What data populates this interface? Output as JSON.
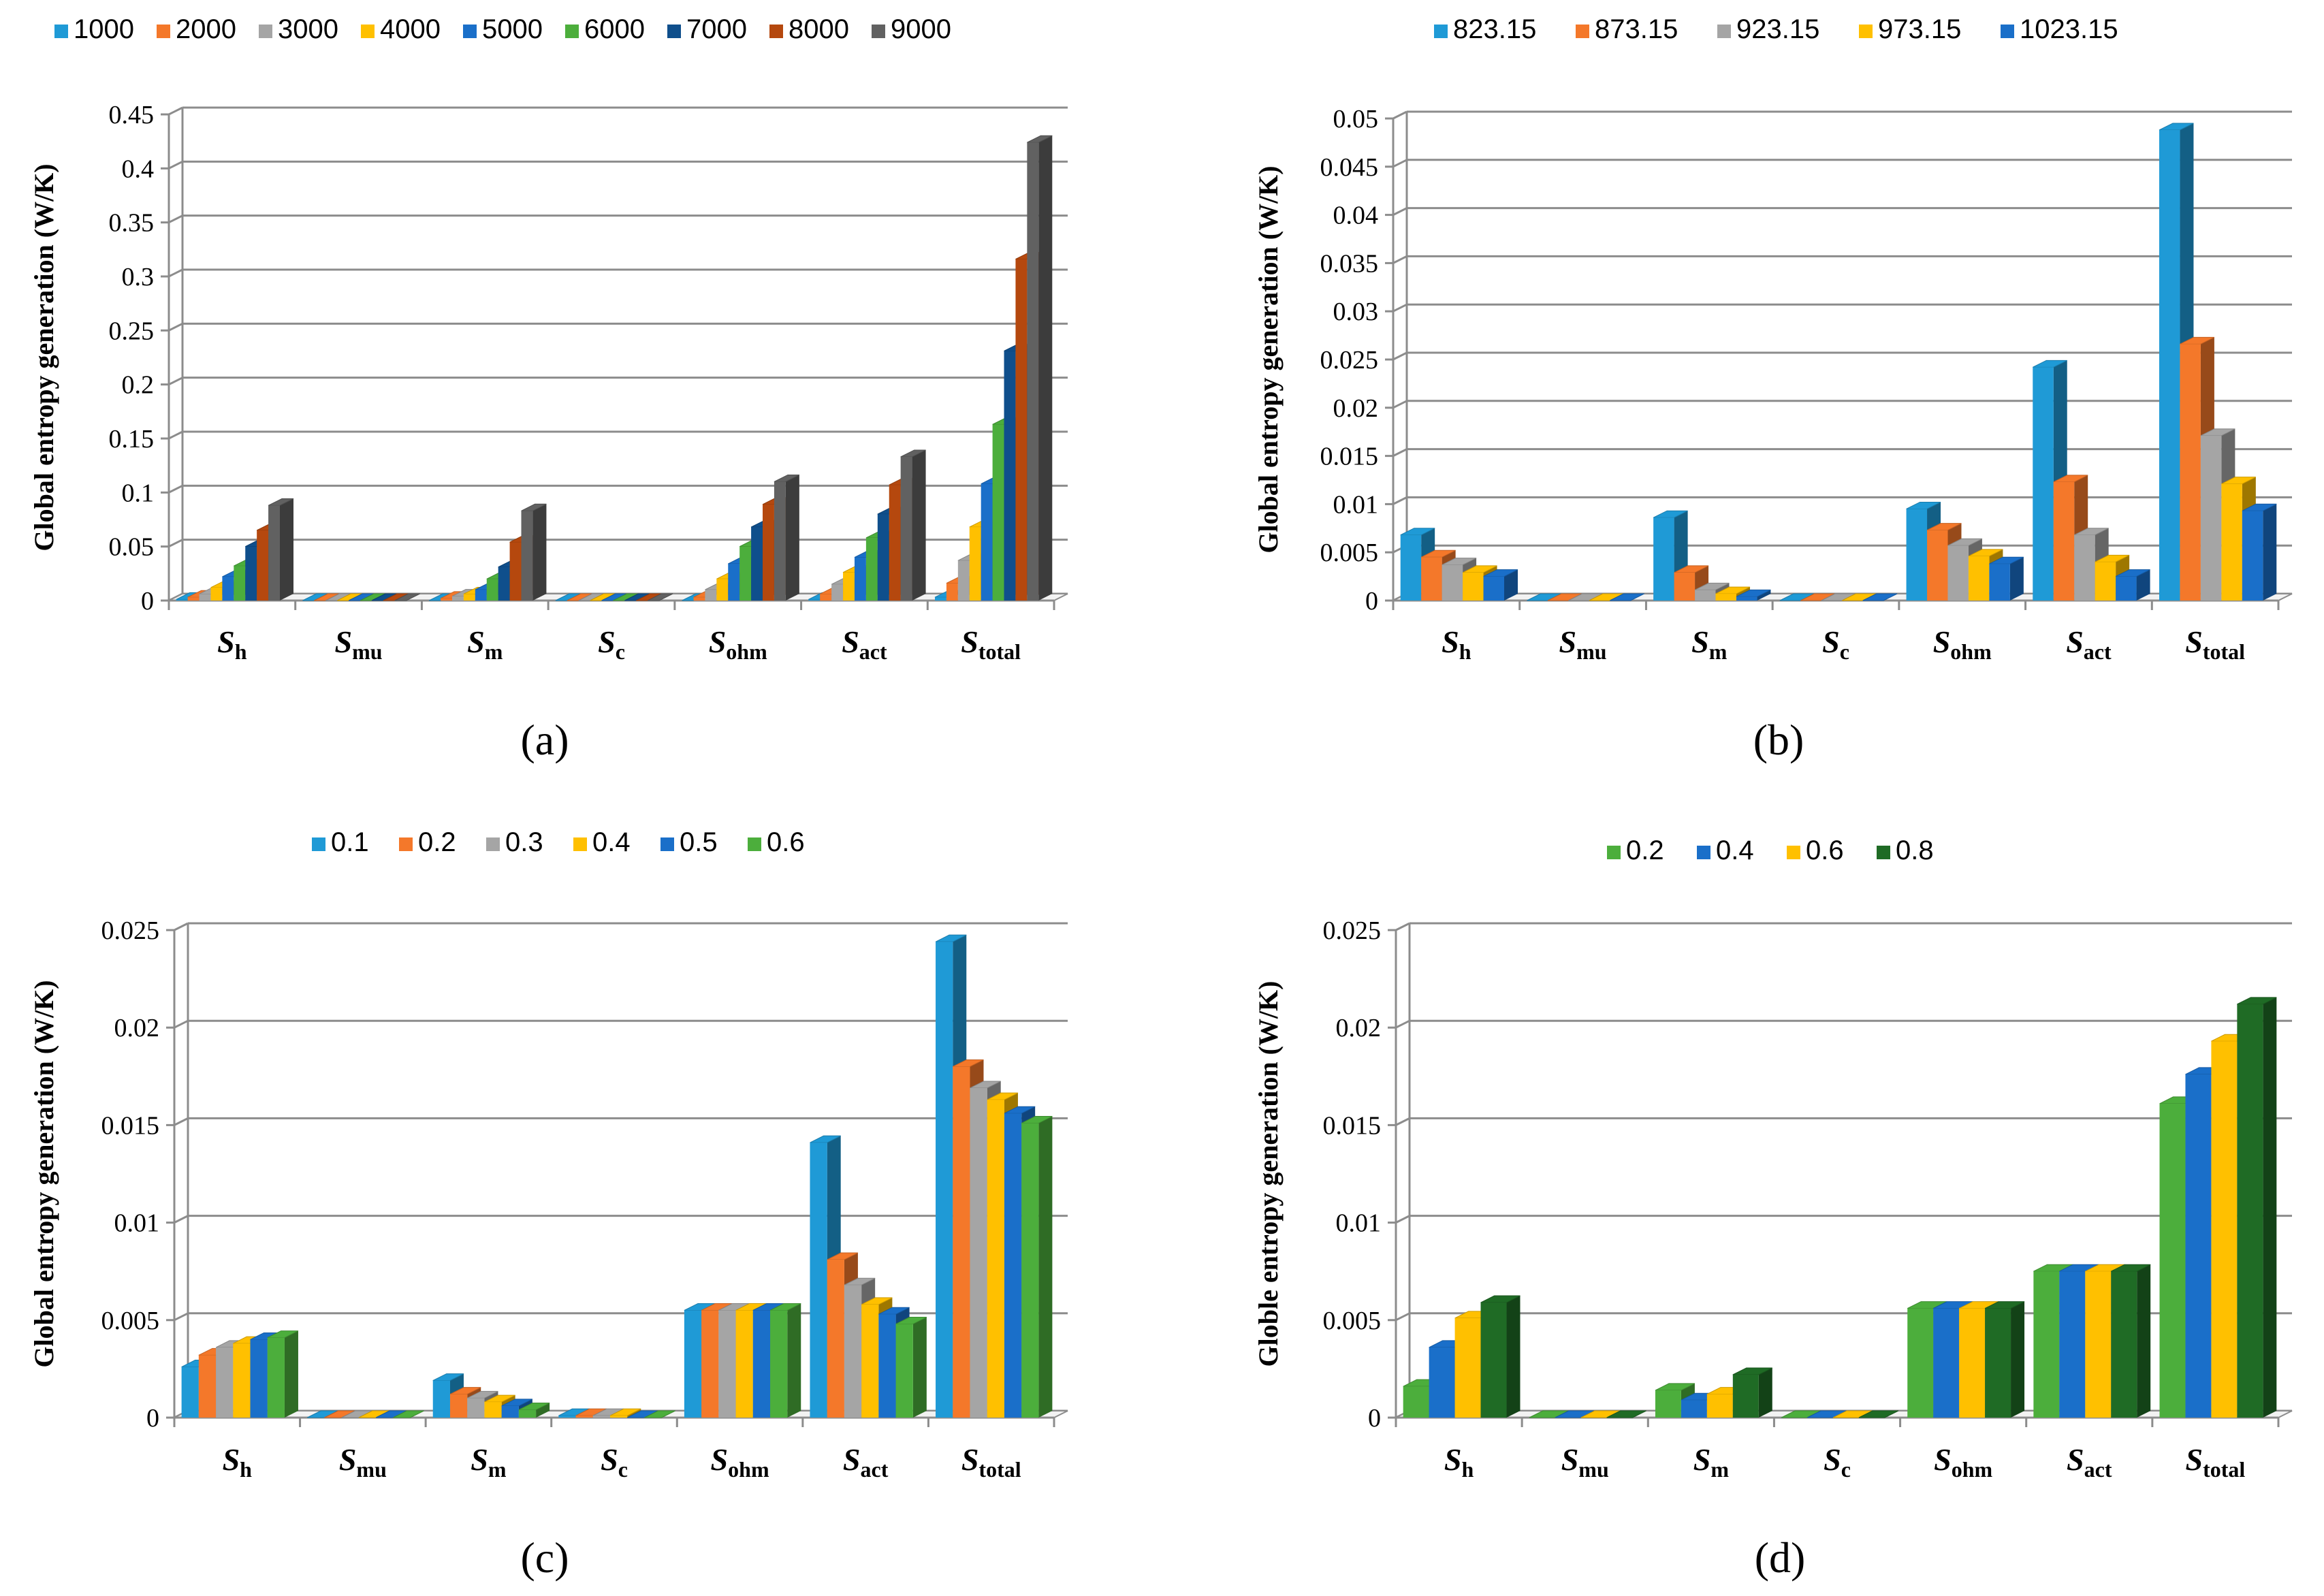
{
  "chart_data": [
    {
      "type": "bar",
      "panel": "a",
      "caption": "(a)",
      "ylabel": "Global entropy generation (W/K)",
      "ylim": [
        0,
        0.45
      ],
      "yticks": [
        "0",
        "0.05",
        "0.1",
        "0.15",
        "0.2",
        "0.25",
        "0.3",
        "0.35",
        "0.4",
        "0.45"
      ],
      "ytick_values": [
        0,
        0.05,
        0.1,
        0.15,
        0.2,
        0.25,
        0.3,
        0.35,
        0.4,
        0.45
      ],
      "categories": [
        {
          "main": "S",
          "sub": "h"
        },
        {
          "main": "S",
          "sub": "mu"
        },
        {
          "main": "S",
          "sub": "m"
        },
        {
          "main": "S",
          "sub": "c"
        },
        {
          "main": "S",
          "sub": "ohm"
        },
        {
          "main": "S",
          "sub": "act"
        },
        {
          "main": "S",
          "sub": "total"
        }
      ],
      "series": [
        {
          "name": "1000",
          "color": "#1f9ad6",
          "values": [
            0.001,
            0.0,
            0.0,
            0.0,
            0.0,
            0.001,
            0.003
          ]
        },
        {
          "name": "2000",
          "color": "#f4782a",
          "values": [
            0.003,
            0.0,
            0.002,
            0.0,
            0.003,
            0.006,
            0.016
          ]
        },
        {
          "name": "3000",
          "color": "#a5a5a5",
          "values": [
            0.006,
            0.0,
            0.004,
            0.0,
            0.01,
            0.015,
            0.037
          ]
        },
        {
          "name": "4000",
          "color": "#ffc000",
          "values": [
            0.012,
            0.0,
            0.006,
            0.0,
            0.02,
            0.026,
            0.068
          ]
        },
        {
          "name": "5000",
          "color": "#1a6fc9",
          "values": [
            0.022,
            0.0,
            0.01,
            0.0,
            0.034,
            0.04,
            0.108
          ]
        },
        {
          "name": "6000",
          "color": "#4cae3c",
          "values": [
            0.032,
            0.0,
            0.02,
            0.0,
            0.05,
            0.058,
            0.163
          ]
        },
        {
          "name": "7000",
          "color": "#0f4f8c",
          "values": [
            0.05,
            0.0,
            0.031,
            0.0,
            0.068,
            0.08,
            0.231
          ]
        },
        {
          "name": "8000",
          "color": "#b5480e",
          "values": [
            0.065,
            0.0,
            0.054,
            0.0,
            0.089,
            0.107,
            0.316
          ]
        },
        {
          "name": "9000",
          "color": "#616161",
          "values": [
            0.088,
            0.0,
            0.083,
            0.0,
            0.11,
            0.133,
            0.424
          ]
        }
      ]
    },
    {
      "type": "bar",
      "panel": "b",
      "caption": "(b)",
      "ylabel": "Global entropy generation (W/K)",
      "ylim": [
        0,
        0.05
      ],
      "yticks": [
        "0",
        "0.005",
        "0.01",
        "0.015",
        "0.02",
        "0.025",
        "0.03",
        "0.035",
        "0.04",
        "0.045",
        "0.05"
      ],
      "ytick_values": [
        0,
        0.005,
        0.01,
        0.015,
        0.02,
        0.025,
        0.03,
        0.035,
        0.04,
        0.045,
        0.05
      ],
      "categories": [
        {
          "main": "S",
          "sub": "h"
        },
        {
          "main": "S",
          "sub": "mu"
        },
        {
          "main": "S",
          "sub": "m"
        },
        {
          "main": "S",
          "sub": "c"
        },
        {
          "main": "S",
          "sub": "ohm"
        },
        {
          "main": "S",
          "sub": "act"
        },
        {
          "main": "S",
          "sub": "total"
        }
      ],
      "series": [
        {
          "name": "823.15",
          "color": "#1f9ad6",
          "values": [
            0.0068,
            0.0,
            0.0086,
            0.0,
            0.0095,
            0.0242,
            0.0488
          ]
        },
        {
          "name": "873.15",
          "color": "#f4782a",
          "values": [
            0.0045,
            0.0,
            0.0029,
            0.0,
            0.0073,
            0.0123,
            0.0266
          ]
        },
        {
          "name": "923.15",
          "color": "#a5a5a5",
          "values": [
            0.0037,
            0.0,
            0.0011,
            0.0,
            0.0057,
            0.0068,
            0.0171
          ]
        },
        {
          "name": "973.15",
          "color": "#ffc000",
          "values": [
            0.0029,
            0.0,
            0.0007,
            0.0,
            0.0046,
            0.004,
            0.0121
          ]
        },
        {
          "name": "1023.15",
          "color": "#1a6fc9",
          "values": [
            0.0025,
            0.0,
            0.0004,
            0.0,
            0.0038,
            0.0025,
            0.0093
          ]
        }
      ]
    },
    {
      "type": "bar",
      "panel": "c",
      "caption": "(c)",
      "ylabel": "Global entropy generation (W/K)",
      "ylim": [
        0,
        0.025
      ],
      "yticks": [
        "0",
        "0.005",
        "0.01",
        "0.015",
        "0.02",
        "0.025"
      ],
      "ytick_values": [
        0,
        0.005,
        0.01,
        0.015,
        0.02,
        0.025
      ],
      "categories": [
        {
          "main": "S",
          "sub": "h"
        },
        {
          "main": "S",
          "sub": "mu"
        },
        {
          "main": "S",
          "sub": "m"
        },
        {
          "main": "S",
          "sub": "c"
        },
        {
          "main": "S",
          "sub": "ohm"
        },
        {
          "main": "S",
          "sub": "act"
        },
        {
          "main": "S",
          "sub": "total"
        }
      ],
      "series": [
        {
          "name": "0.1",
          "color": "#1f9ad6",
          "values": [
            0.0026,
            0.0,
            0.0019,
            0.0001,
            0.0055,
            0.0141,
            0.0244
          ]
        },
        {
          "name": "0.2",
          "color": "#f4782a",
          "values": [
            0.0032,
            0.0,
            0.0012,
            0.0001,
            0.0055,
            0.0081,
            0.018
          ]
        },
        {
          "name": "0.3",
          "color": "#a5a5a5",
          "values": [
            0.0036,
            0.0,
            0.001,
            0.0001,
            0.0055,
            0.0068,
            0.0169
          ]
        },
        {
          "name": "0.4",
          "color": "#ffc000",
          "values": [
            0.0038,
            0.0,
            0.0008,
            0.0001,
            0.0055,
            0.0058,
            0.0163
          ]
        },
        {
          "name": "0.5",
          "color": "#1a6fc9",
          "values": [
            0.004,
            0.0,
            0.0006,
            0.0,
            0.0055,
            0.0053,
            0.0156
          ]
        },
        {
          "name": "0.6",
          "color": "#4cae3c",
          "values": [
            0.0041,
            0.0,
            0.0004,
            0.0,
            0.0055,
            0.0048,
            0.0151
          ]
        }
      ]
    },
    {
      "type": "bar",
      "panel": "d",
      "caption": "(d)",
      "ylabel": "Globle entropy generation (W/K)",
      "ylim": [
        0,
        0.025
      ],
      "yticks": [
        "0",
        "0.005",
        "0.01",
        "0.015",
        "0.02",
        "0.025"
      ],
      "ytick_values": [
        0,
        0.005,
        0.01,
        0.015,
        0.02,
        0.025
      ],
      "categories": [
        {
          "main": "S",
          "sub": "h"
        },
        {
          "main": "S",
          "sub": "mu"
        },
        {
          "main": "S",
          "sub": "m"
        },
        {
          "main": "S",
          "sub": "c"
        },
        {
          "main": "S",
          "sub": "ohm"
        },
        {
          "main": "S",
          "sub": "act"
        },
        {
          "main": "S",
          "sub": "total"
        }
      ],
      "series": [
        {
          "name": "0.2",
          "color": "#4cae3c",
          "values": [
            0.0016,
            0.0,
            0.0014,
            0.0,
            0.0056,
            0.0075,
            0.0161
          ]
        },
        {
          "name": "0.4",
          "color": "#1a6fc9",
          "values": [
            0.0036,
            0.0,
            0.0009,
            0.0,
            0.0056,
            0.0075,
            0.0176
          ]
        },
        {
          "name": "0.6",
          "color": "#ffc000",
          "values": [
            0.0051,
            0.0,
            0.0012,
            0.0,
            0.0056,
            0.0075,
            0.0193
          ]
        },
        {
          "name": "0.8",
          "color": "#1f6b25",
          "values": [
            0.0059,
            0.0,
            0.0022,
            0.0,
            0.0056,
            0.0075,
            0.0212
          ]
        }
      ]
    }
  ]
}
